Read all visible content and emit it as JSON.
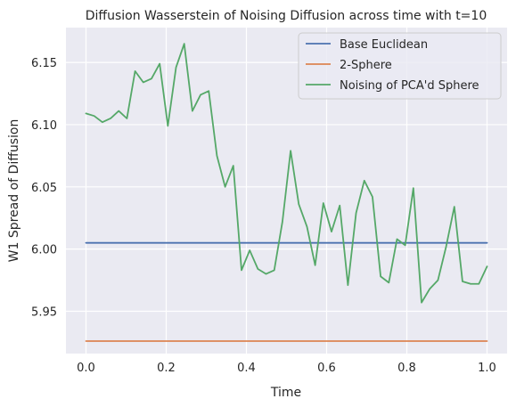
{
  "chart_data": {
    "type": "line",
    "title": "Diffusion Wasserstein of Noising Diffusion across time with t=10",
    "xlabel": "Time",
    "ylabel": "W1 Spread of Diffusion",
    "xlim": [
      -0.05,
      1.05
    ],
    "ylim": [
      5.916,
      6.178
    ],
    "x_ticks": [
      0.0,
      0.2,
      0.4,
      0.6,
      0.8,
      1.0
    ],
    "x_tick_labels": [
      "0.0",
      "0.2",
      "0.4",
      "0.6",
      "0.8",
      "1.0"
    ],
    "y_ticks": [
      5.95,
      6.0,
      6.05,
      6.1,
      6.15
    ],
    "y_tick_labels": [
      "5.95",
      "6.00",
      "6.05",
      "6.10",
      "6.15"
    ],
    "grid": true,
    "background": "#eaeaf2",
    "legend_position": "upper-right",
    "series": [
      {
        "name": "Base Euclidean",
        "color": "#4c72b0",
        "x": [
          0.0,
          1.0
        ],
        "y": [
          6.005,
          6.005
        ]
      },
      {
        "name": "2-Sphere",
        "color": "#dd8452",
        "x": [
          0.0,
          1.0
        ],
        "y": [
          5.926,
          5.926
        ]
      },
      {
        "name": "Noising of PCA'd Sphere",
        "color": "#55a868",
        "x": [
          0.0,
          0.0204,
          0.0408,
          0.0612,
          0.0816,
          0.102,
          0.1224,
          0.1429,
          0.1633,
          0.1837,
          0.2041,
          0.2245,
          0.2449,
          0.2653,
          0.2857,
          0.3061,
          0.3265,
          0.3469,
          0.3673,
          0.3878,
          0.4082,
          0.4286,
          0.449,
          0.4694,
          0.4898,
          0.5102,
          0.5306,
          0.551,
          0.5714,
          0.5918,
          0.6122,
          0.6327,
          0.6531,
          0.6735,
          0.6939,
          0.7143,
          0.7347,
          0.7551,
          0.7755,
          0.7959,
          0.8163,
          0.8367,
          0.8571,
          0.8776,
          0.898,
          0.9184,
          0.9388,
          0.9592,
          0.9796,
          1.0
        ],
        "y": [
          6.109,
          6.107,
          6.102,
          6.105,
          6.111,
          6.105,
          6.143,
          6.134,
          6.137,
          6.149,
          6.099,
          6.146,
          6.165,
          6.111,
          6.124,
          6.127,
          6.075,
          6.05,
          6.067,
          5.983,
          5.999,
          5.984,
          5.98,
          5.983,
          6.022,
          6.079,
          6.036,
          6.018,
          5.987,
          6.037,
          6.014,
          6.035,
          5.971,
          6.029,
          6.055,
          6.042,
          5.978,
          5.973,
          6.008,
          6.003,
          6.049,
          5.957,
          5.968,
          5.975,
          6.002,
          6.034,
          5.974,
          5.972,
          5.972,
          5.986
        ]
      }
    ]
  }
}
